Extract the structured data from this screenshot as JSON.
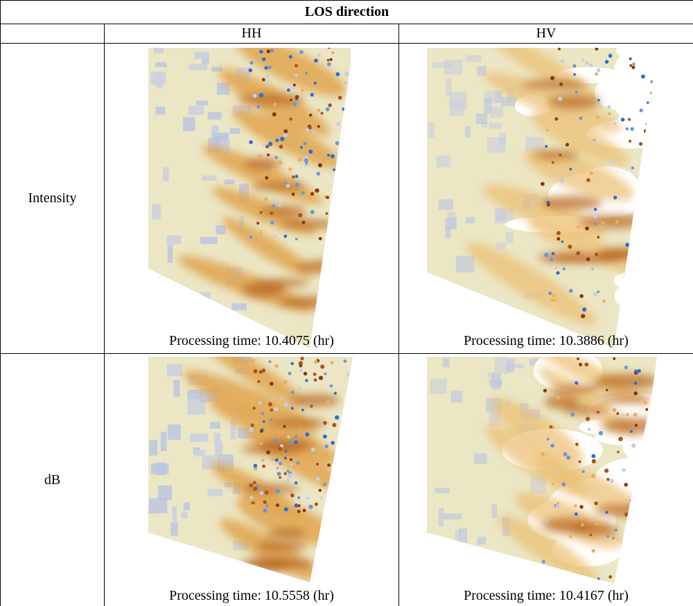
{
  "header": {
    "title": "LOS direction"
  },
  "table": {
    "columns": [
      "HH",
      "HV"
    ],
    "rows": [
      {
        "label": "Intensity",
        "captions": [
          "Processing time: 10.4075 (hr)",
          "Processing time: 10.3886 (hr)"
        ]
      },
      {
        "label": "dB",
        "captions": [
          "Processing time: 10.5558 (hr)",
          "Processing time: 10.4167 (hr)"
        ]
      }
    ]
  }
}
